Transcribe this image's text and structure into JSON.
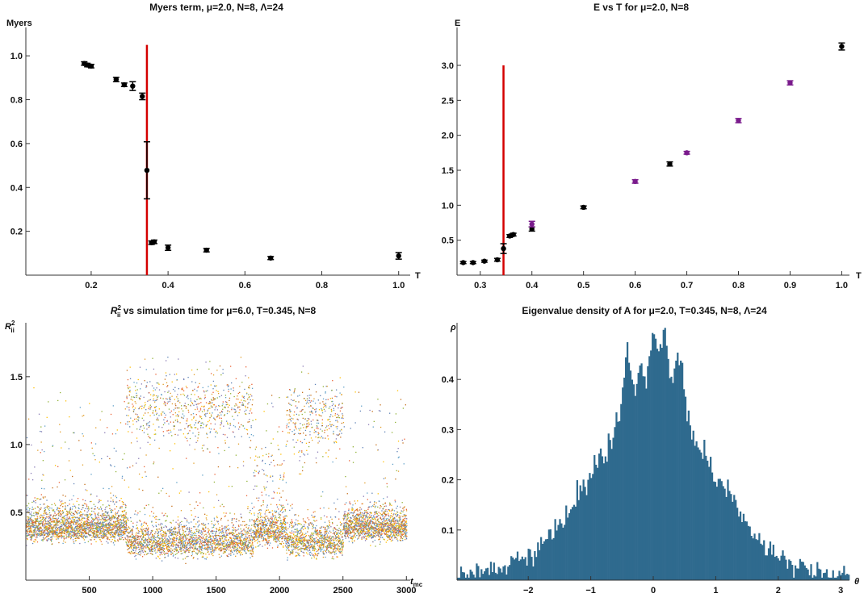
{
  "chart_data": [
    {
      "type": "scatter",
      "title": "Myers term, μ=2.0, N=8, Λ=24",
      "xlabel": "T",
      "ylabel": "Myers",
      "xlim": [
        0.03,
        1.03
      ],
      "ylim": [
        0.0,
        1.1
      ],
      "xticks": [
        0.2,
        0.4,
        0.6,
        0.8,
        1.0
      ],
      "xtick_labels": [
        "0.2",
        "0.4",
        "0.6",
        "0.8",
        "1.0"
      ],
      "yticks": [
        0.2,
        0.4,
        0.6,
        0.8,
        1.0
      ],
      "ytick_labels": [
        "0.2",
        "0.4",
        "0.6",
        "0.8",
        "1.0"
      ],
      "vline": {
        "x": 0.345,
        "ymax": 1.05,
        "color": "#d40000"
      },
      "series": [
        {
          "color": "#000000",
          "points": [
            {
              "x": 0.182,
              "y": 0.965,
              "err": 0.008
            },
            {
              "x": 0.19,
              "y": 0.958,
              "err": 0.008
            },
            {
              "x": 0.2,
              "y": 0.953,
              "err": 0.008
            },
            {
              "x": 0.265,
              "y": 0.892,
              "err": 0.01
            },
            {
              "x": 0.286,
              "y": 0.868,
              "err": 0.008
            },
            {
              "x": 0.308,
              "y": 0.862,
              "err": 0.02
            },
            {
              "x": 0.333,
              "y": 0.815,
              "err": 0.015
            },
            {
              "x": 0.345,
              "y": 0.478,
              "err": 0.13
            },
            {
              "x": 0.357,
              "y": 0.148,
              "err": 0.008
            },
            {
              "x": 0.364,
              "y": 0.152,
              "err": 0.008
            },
            {
              "x": 0.4,
              "y": 0.125,
              "err": 0.012
            },
            {
              "x": 0.5,
              "y": 0.114,
              "err": 0.008
            },
            {
              "x": 0.667,
              "y": 0.078,
              "err": 0.007
            },
            {
              "x": 1.0,
              "y": 0.088,
              "err": 0.015
            }
          ]
        }
      ]
    },
    {
      "type": "scatter",
      "title": "E vs T for μ=2.0, N=8",
      "xlabel": "T",
      "ylabel": "E",
      "xlim": [
        0.255,
        1.015
      ],
      "ylim": [
        0.0,
        3.45
      ],
      "xticks": [
        0.3,
        0.4,
        0.5,
        0.6,
        0.7,
        0.8,
        0.9,
        1.0
      ],
      "xtick_labels": [
        "0.3",
        "0.4",
        "0.5",
        "0.6",
        "0.7",
        "0.8",
        "0.9",
        "1.0"
      ],
      "yticks": [
        0.5,
        1.0,
        1.5,
        2.0,
        2.5,
        3.0
      ],
      "ytick_labels": [
        "0.5",
        "1.0",
        "1.5",
        "2.0",
        "2.5",
        "3.0"
      ],
      "vline": {
        "x": 0.345,
        "ymax": 3.0,
        "color": "#d40000"
      },
      "series": [
        {
          "color": "#000000",
          "points": [
            {
              "x": 0.267,
              "y": 0.18,
              "err": 0.015
            },
            {
              "x": 0.286,
              "y": 0.18,
              "err": 0.015
            },
            {
              "x": 0.308,
              "y": 0.2,
              "err": 0.015
            },
            {
              "x": 0.333,
              "y": 0.22,
              "err": 0.02
            },
            {
              "x": 0.345,
              "y": 0.38,
              "err": 0.07
            },
            {
              "x": 0.357,
              "y": 0.56,
              "err": 0.02
            },
            {
              "x": 0.364,
              "y": 0.58,
              "err": 0.02
            },
            {
              "x": 0.4,
              "y": 0.66,
              "err": 0.03
            },
            {
              "x": 0.5,
              "y": 0.97,
              "err": 0.02
            },
            {
              "x": 0.667,
              "y": 1.59,
              "err": 0.03
            },
            {
              "x": 1.0,
              "y": 3.27,
              "err": 0.05
            }
          ]
        },
        {
          "color": "#7a1b8c",
          "points": [
            {
              "x": 0.4,
              "y": 0.73,
              "err": 0.04
            },
            {
              "x": 0.6,
              "y": 1.34,
              "err": 0.025
            },
            {
              "x": 0.7,
              "y": 1.75,
              "err": 0.02
            },
            {
              "x": 0.8,
              "y": 2.21,
              "err": 0.03
            },
            {
              "x": 0.9,
              "y": 2.75,
              "err": 0.03
            }
          ]
        }
      ]
    },
    {
      "type": "scatter",
      "title_main": "R",
      "title_sup": "2",
      "title_sub": "ii",
      "title_rest": " vs simulation time for μ=6.0, T=0.345, N=8",
      "xlabel_main": "t",
      "xlabel_sub": "mc",
      "ylabel_main": "R",
      "ylabel_sup": "2",
      "ylabel_sub": "ii",
      "xlim": [
        0,
        3030
      ],
      "ylim": [
        0.0,
        1.85
      ],
      "xticks": [
        500,
        1000,
        1500,
        2000,
        2500,
        3000
      ],
      "xtick_labels": [
        "500",
        "1000",
        "1500",
        "2000",
        "2500",
        "3000"
      ],
      "yticks": [
        0.5,
        1.0,
        1.5
      ],
      "ytick_labels": [
        "0.5",
        "1.0",
        "1.5"
      ],
      "series_colors": [
        "#5e81b5",
        "#e19c24",
        "#8fb032",
        "#eb6235",
        "#8778b3",
        "#c56e1a",
        "#5d9ec7",
        "#ffbf00"
      ],
      "states": [
        {
          "from": 0,
          "to": 790,
          "low": 0.33,
          "high_frac": 0.0
        },
        {
          "from": 790,
          "to": 1790,
          "low": 0.22,
          "high": 1.28,
          "high_frac": 0.25
        },
        {
          "from": 1790,
          "to": 2050,
          "low": 0.3,
          "high": 0.85,
          "high_frac": 0.1
        },
        {
          "from": 2050,
          "to": 2500,
          "low": 0.22,
          "high": 1.2,
          "high_frac": 0.25
        },
        {
          "from": 2500,
          "to": 3030,
          "low": 0.33,
          "high_frac": 0.0
        }
      ]
    },
    {
      "type": "bar",
      "title": "Eigenvalue density of A for μ=2.0, T=0.345, N=8, Λ=24",
      "xlabel": "θ",
      "ylabel": "ρ",
      "xlim": [
        -3.14,
        3.14
      ],
      "ylim": [
        0.0,
        0.5
      ],
      "xticks": [
        -2,
        -1,
        0,
        1,
        2,
        3
      ],
      "xtick_labels": [
        "−2",
        "−1",
        "0",
        "1",
        "2",
        "3"
      ],
      "yticks": [
        0.1,
        0.2,
        0.3,
        0.4
      ],
      "ytick_labels": [
        "0.1",
        "0.2",
        "0.3",
        "0.4"
      ],
      "color": "#2f6a8e",
      "bins": 250,
      "peaks": [
        {
          "center": -0.42,
          "height": 0.41,
          "width": 0.07
        },
        {
          "center": 0.18,
          "height": 0.45,
          "width": 0.06
        },
        {
          "center": 0.0,
          "height": 0.43,
          "width": 0.06
        },
        {
          "center": -0.2,
          "height": 0.36,
          "width": 0.06
        },
        {
          "center": 0.42,
          "height": 0.42,
          "width": 0.07
        }
      ]
    }
  ]
}
